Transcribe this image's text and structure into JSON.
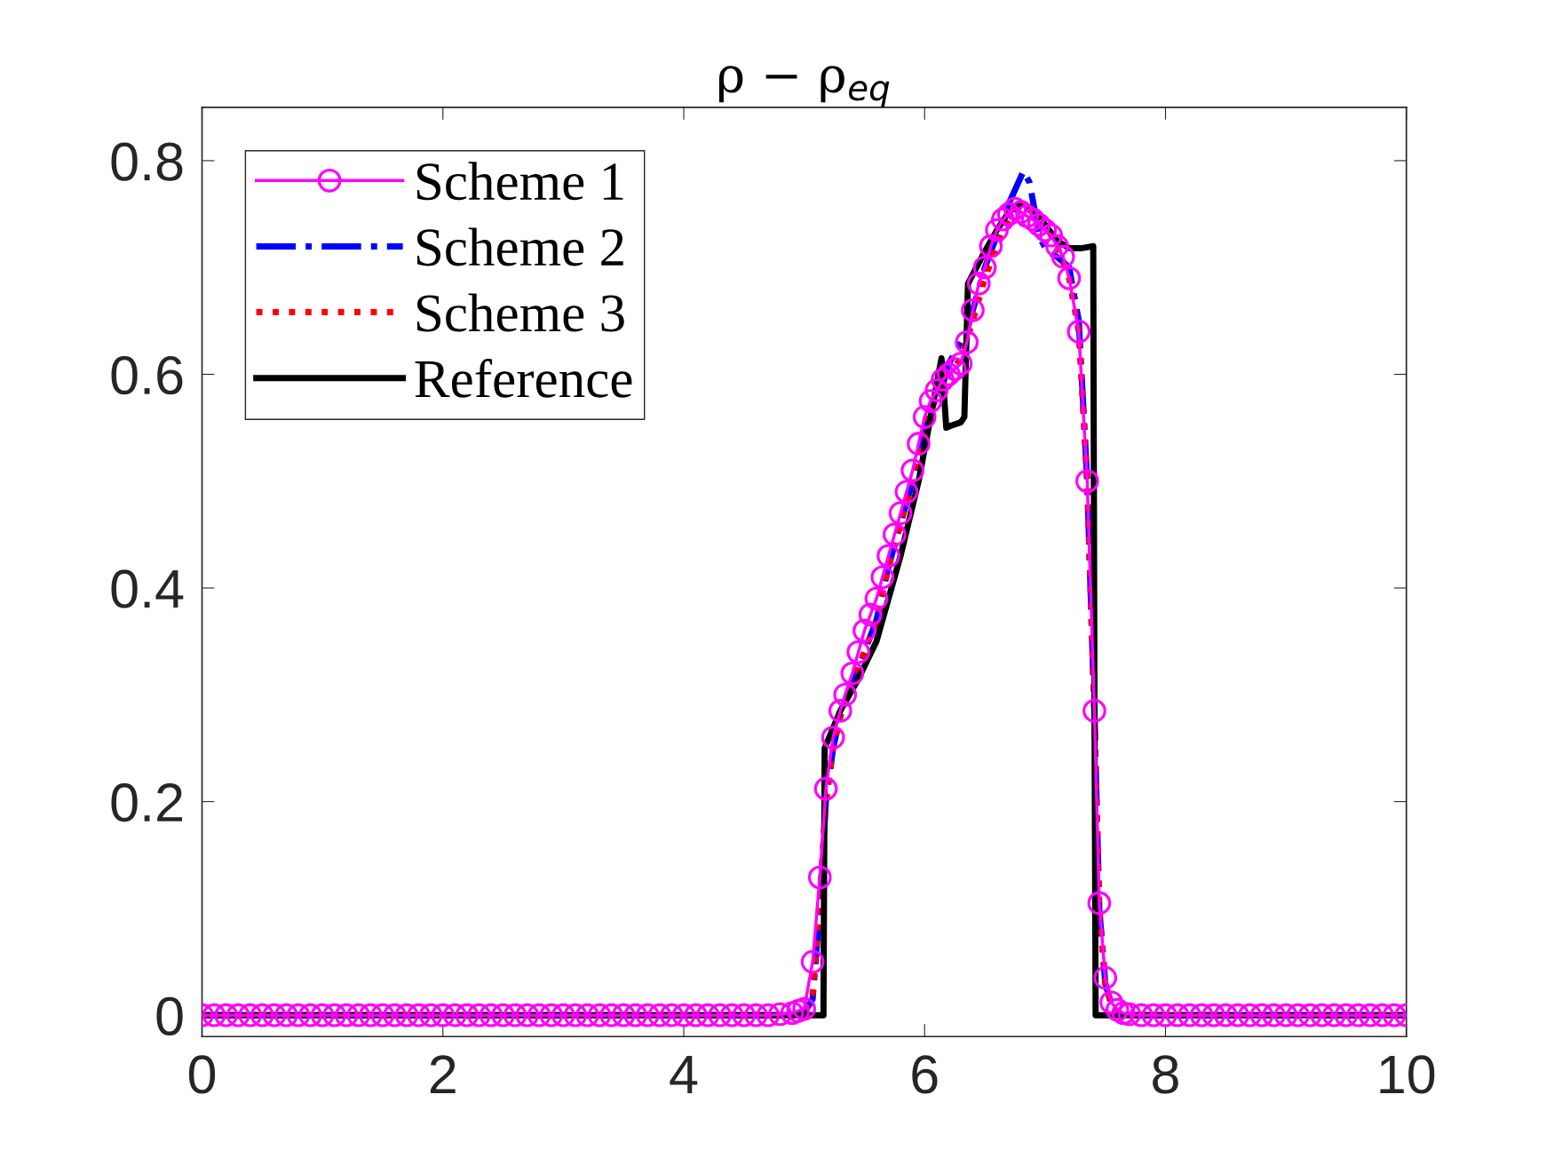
{
  "chart_data": {
    "type": "line",
    "title": "ρ − ρ$_{eq}$",
    "xlim": [
      0,
      10
    ],
    "ylim": [
      -0.02,
      0.85
    ],
    "xticks": [
      0,
      2,
      4,
      6,
      8,
      10
    ],
    "yticks": [
      0,
      0.2,
      0.4,
      0.6,
      0.8
    ],
    "grid": false,
    "legend": "top left",
    "series": [
      {
        "name": "Scheme 1",
        "color": "#ff00ff",
        "marker": "circle",
        "line_style": "solid",
        "x": [
          0,
          0.1,
          0.2,
          0.3,
          0.4,
          0.5,
          0.6,
          0.7,
          0.8,
          0.9,
          1,
          1.1,
          1.2,
          1.3,
          1.4,
          1.5,
          1.6,
          1.7,
          1.8,
          1.9,
          2,
          2.1,
          2.2,
          2.3,
          2.4,
          2.5,
          2.6,
          2.7,
          2.8,
          2.9,
          3,
          3.1,
          3.2,
          3.3,
          3.4,
          3.5,
          3.6,
          3.7,
          3.8,
          3.9,
          4,
          4.1,
          4.2,
          4.3,
          4.4,
          4.5,
          4.6,
          4.7,
          4.8,
          4.9,
          4.95,
          5,
          5.07,
          5.13,
          5.18,
          5.24,
          5.3,
          5.34,
          5.4,
          5.45,
          5.5,
          5.55,
          5.6,
          5.65,
          5.7,
          5.75,
          5.8,
          5.85,
          5.9,
          5.95,
          6,
          6.05,
          6.1,
          6.15,
          6.2,
          6.25,
          6.3,
          6.35,
          6.4,
          6.45,
          6.5,
          6.55,
          6.6,
          6.65,
          6.7,
          6.75,
          6.8,
          6.85,
          6.9,
          6.95,
          7,
          7.05,
          7.1,
          7.15,
          7.2,
          7.28,
          7.35,
          7.41,
          7.45,
          7.5,
          7.55,
          7.6,
          7.65,
          7.7,
          7.8,
          7.9,
          8,
          8.1,
          8.2,
          8.3,
          8.4,
          8.5,
          8.6,
          8.7,
          8.8,
          8.9,
          9,
          9.1,
          9.2,
          9.3,
          9.4,
          9.5,
          9.6,
          9.7,
          9.8,
          9.9,
          10
        ],
        "values": [
          0,
          0,
          0,
          0,
          0,
          0,
          0,
          0,
          0,
          0,
          0,
          0,
          0,
          0,
          0,
          0,
          0,
          0,
          0,
          0,
          0,
          0,
          0,
          0,
          0,
          0,
          0,
          0,
          0,
          0,
          0,
          0,
          0,
          0,
          0,
          0,
          0,
          0,
          0,
          0,
          0,
          0,
          0,
          0,
          0,
          0,
          0,
          0,
          0.001,
          0.002,
          0.004,
          0.006,
          0.05,
          0.129,
          0.212,
          0.26,
          0.285,
          0.3,
          0.32,
          0.34,
          0.36,
          0.375,
          0.39,
          0.41,
          0.43,
          0.45,
          0.47,
          0.49,
          0.51,
          0.535,
          0.56,
          0.575,
          0.585,
          0.595,
          0.6,
          0.605,
          0.61,
          0.63,
          0.66,
          0.685,
          0.7,
          0.72,
          0.735,
          0.745,
          0.75,
          0.755,
          0.752,
          0.748,
          0.745,
          0.74,
          0.735,
          0.73,
          0.72,
          0.71,
          0.69,
          0.64,
          0.5,
          0.285,
          0.105,
          0.035,
          0.012,
          0.005,
          0.002,
          0.001,
          0,
          0,
          0,
          0,
          0,
          0,
          0,
          0,
          0,
          0,
          0,
          0,
          0,
          0,
          0,
          0,
          0,
          0,
          0,
          0,
          0,
          0,
          0
        ]
      },
      {
        "name": "Scheme 2",
        "color": "#0000ff",
        "marker": "none",
        "line_style": "dashdot",
        "x": [
          0,
          4.9,
          5,
          5.07,
          5.13,
          5.18,
          5.24,
          5.3,
          5.4,
          5.5,
          5.6,
          5.7,
          5.8,
          5.9,
          6,
          6.1,
          6.15,
          6.2,
          6.25,
          6.3,
          6.35,
          6.4,
          6.5,
          6.6,
          6.7,
          6.78,
          6.82,
          6.87,
          6.92,
          6.97,
          7.02,
          7.1,
          7.2,
          7.28,
          7.35,
          7.41,
          7.45,
          7.5,
          7.55,
          7.6,
          7.7,
          10
        ],
        "values": [
          0,
          0,
          0.002,
          0.015,
          0.1,
          0.2,
          0.25,
          0.28,
          0.31,
          0.34,
          0.37,
          0.42,
          0.46,
          0.5,
          0.55,
          0.58,
          0.59,
          0.61,
          0.62,
          0.63,
          0.64,
          0.66,
          0.7,
          0.73,
          0.76,
          0.78,
          0.79,
          0.78,
          0.75,
          0.725,
          0.715,
          0.71,
          0.7,
          0.65,
          0.5,
          0.28,
          0.1,
          0.03,
          0.01,
          0.003,
          0,
          0
        ]
      },
      {
        "name": "Scheme 3",
        "color": "#ff0000",
        "marker": "none",
        "line_style": "dotted",
        "x": [
          0,
          4.9,
          5,
          5.07,
          5.13,
          5.18,
          5.24,
          5.3,
          5.4,
          5.5,
          5.6,
          5.7,
          5.8,
          5.9,
          6,
          6.1,
          6.15,
          6.2,
          6.3,
          6.4,
          6.5,
          6.6,
          6.7,
          6.8,
          6.9,
          7,
          7.1,
          7.2,
          7.28,
          7.35,
          7.41,
          7.45,
          7.5,
          7.55,
          7.6
        ],
        "values": [
          0,
          0,
          0.003,
          0.02,
          0.11,
          0.2,
          0.25,
          0.28,
          0.31,
          0.34,
          0.37,
          0.42,
          0.46,
          0.5,
          0.55,
          0.58,
          0.59,
          0.6,
          0.615,
          0.65,
          0.69,
          0.72,
          0.745,
          0.758,
          0.752,
          0.74,
          0.72,
          0.69,
          0.64,
          0.5,
          0.28,
          0.1,
          0.03,
          0.01,
          0.003
        ]
      },
      {
        "name": "Reference",
        "color": "#000000",
        "marker": "none",
        "line_style": "solid",
        "x": [
          0,
          5.16,
          5.17,
          5.3,
          5.45,
          5.6,
          5.8,
          5.95,
          6.05,
          6.14,
          6.18,
          6.22,
          6.3,
          6.33,
          6.36,
          6.5,
          6.6,
          6.7,
          6.8,
          6.9,
          7,
          7.1,
          7.2,
          7.3,
          7.4,
          7.41,
          7.42,
          10
        ],
        "values": [
          0,
          0,
          0.25,
          0.285,
          0.315,
          0.35,
          0.43,
          0.5,
          0.56,
          0.615,
          0.55,
          0.552,
          0.555,
          0.56,
          0.685,
          0.715,
          0.735,
          0.752,
          0.76,
          0.755,
          0.74,
          0.725,
          0.718,
          0.718,
          0.72,
          0.3,
          0,
          0
        ]
      }
    ]
  }
}
